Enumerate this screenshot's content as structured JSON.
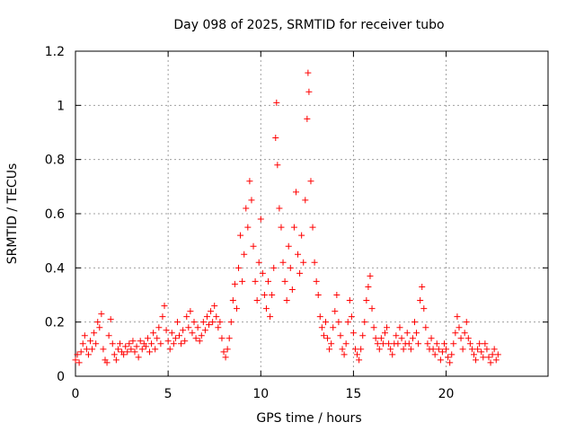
{
  "chart_data": {
    "type": "scatter",
    "title": "Day 098 of 2025, SRMTID for receiver tubo",
    "xlabel": "GPS time / hours",
    "ylabel": "SRMTID / TECUs",
    "xlim": [
      0,
      25.5
    ],
    "ylim": [
      0,
      1.2
    ],
    "x_ticks": [
      0,
      5,
      10,
      15,
      20
    ],
    "x_tick_labels": [
      "0",
      "5",
      "10",
      "15",
      "20"
    ],
    "y_ticks": [
      0,
      0.2,
      0.4,
      0.6,
      0.8,
      1,
      1.2
    ],
    "y_tick_labels": [
      "0",
      "0.2",
      "0.4",
      "0.6",
      "0.8",
      "1",
      "1.2"
    ],
    "grid": true,
    "marker": "+",
    "series": [
      {
        "name": "SRMTID",
        "color": "#ff0000",
        "points": [
          [
            0.0,
            0.06
          ],
          [
            0.1,
            0.08
          ],
          [
            0.2,
            0.05
          ],
          [
            0.3,
            0.09
          ],
          [
            0.4,
            0.12
          ],
          [
            0.5,
            0.15
          ],
          [
            0.6,
            0.1
          ],
          [
            0.7,
            0.08
          ],
          [
            0.8,
            0.13
          ],
          [
            0.9,
            0.1
          ],
          [
            1.0,
            0.16
          ],
          [
            1.1,
            0.12
          ],
          [
            1.2,
            0.2
          ],
          [
            1.3,
            0.18
          ],
          [
            1.4,
            0.23
          ],
          [
            1.5,
            0.1
          ],
          [
            1.6,
            0.06
          ],
          [
            1.7,
            0.05
          ],
          [
            1.8,
            0.15
          ],
          [
            1.9,
            0.21
          ],
          [
            2.0,
            0.12
          ],
          [
            2.1,
            0.08
          ],
          [
            2.2,
            0.06
          ],
          [
            2.3,
            0.1
          ],
          [
            2.4,
            0.12
          ],
          [
            2.5,
            0.09
          ],
          [
            2.6,
            0.08
          ],
          [
            2.7,
            0.11
          ],
          [
            2.8,
            0.09
          ],
          [
            2.9,
            0.12
          ],
          [
            3.0,
            0.1
          ],
          [
            3.1,
            0.13
          ],
          [
            3.2,
            0.09
          ],
          [
            3.3,
            0.11
          ],
          [
            3.4,
            0.07
          ],
          [
            3.5,
            0.13
          ],
          [
            3.6,
            0.1
          ],
          [
            3.7,
            0.12
          ],
          [
            3.8,
            0.11
          ],
          [
            3.9,
            0.14
          ],
          [
            4.0,
            0.09
          ],
          [
            4.1,
            0.12
          ],
          [
            4.2,
            0.16
          ],
          [
            4.3,
            0.1
          ],
          [
            4.4,
            0.14
          ],
          [
            4.5,
            0.18
          ],
          [
            4.6,
            0.12
          ],
          [
            4.7,
            0.22
          ],
          [
            4.8,
            0.26
          ],
          [
            4.9,
            0.17
          ],
          [
            5.0,
            0.13
          ],
          [
            5.1,
            0.1
          ],
          [
            5.2,
            0.16
          ],
          [
            5.3,
            0.12
          ],
          [
            5.4,
            0.14
          ],
          [
            5.5,
            0.2
          ],
          [
            5.6,
            0.15
          ],
          [
            5.7,
            0.12
          ],
          [
            5.8,
            0.17
          ],
          [
            5.9,
            0.13
          ],
          [
            6.0,
            0.22
          ],
          [
            6.1,
            0.18
          ],
          [
            6.2,
            0.24
          ],
          [
            6.3,
            0.16
          ],
          [
            6.4,
            0.2
          ],
          [
            6.5,
            0.14
          ],
          [
            6.6,
            0.18
          ],
          [
            6.7,
            0.13
          ],
          [
            6.8,
            0.15
          ],
          [
            6.9,
            0.2
          ],
          [
            7.0,
            0.17
          ],
          [
            7.1,
            0.22
          ],
          [
            7.2,
            0.19
          ],
          [
            7.3,
            0.24
          ],
          [
            7.4,
            0.2
          ],
          [
            7.5,
            0.26
          ],
          [
            7.6,
            0.22
          ],
          [
            7.7,
            0.18
          ],
          [
            7.8,
            0.2
          ],
          [
            7.9,
            0.14
          ],
          [
            8.0,
            0.09
          ],
          [
            8.1,
            0.07
          ],
          [
            8.2,
            0.1
          ],
          [
            8.3,
            0.14
          ],
          [
            8.4,
            0.2
          ],
          [
            8.5,
            0.28
          ],
          [
            8.6,
            0.34
          ],
          [
            8.7,
            0.25
          ],
          [
            8.8,
            0.4
          ],
          [
            8.9,
            0.52
          ],
          [
            9.0,
            0.35
          ],
          [
            9.1,
            0.45
          ],
          [
            9.2,
            0.62
          ],
          [
            9.3,
            0.55
          ],
          [
            9.4,
            0.72
          ],
          [
            9.5,
            0.65
          ],
          [
            9.6,
            0.48
          ],
          [
            9.7,
            0.35
          ],
          [
            9.8,
            0.28
          ],
          [
            9.9,
            0.42
          ],
          [
            10.0,
            0.58
          ],
          [
            10.1,
            0.38
          ],
          [
            10.2,
            0.3
          ],
          [
            10.3,
            0.25
          ],
          [
            10.4,
            0.35
          ],
          [
            10.5,
            0.22
          ],
          [
            10.6,
            0.3
          ],
          [
            10.7,
            0.4
          ],
          [
            10.8,
            0.88
          ],
          [
            10.85,
            1.01
          ],
          [
            10.9,
            0.78
          ],
          [
            11.0,
            0.62
          ],
          [
            11.1,
            0.55
          ],
          [
            11.2,
            0.42
          ],
          [
            11.3,
            0.35
          ],
          [
            11.4,
            0.28
          ],
          [
            11.5,
            0.48
          ],
          [
            11.6,
            0.4
          ],
          [
            11.7,
            0.32
          ],
          [
            11.8,
            0.55
          ],
          [
            11.9,
            0.68
          ],
          [
            12.0,
            0.45
          ],
          [
            12.1,
            0.38
          ],
          [
            12.2,
            0.52
          ],
          [
            12.3,
            0.42
          ],
          [
            12.4,
            0.65
          ],
          [
            12.5,
            0.95
          ],
          [
            12.55,
            1.12
          ],
          [
            12.6,
            1.05
          ],
          [
            12.7,
            0.72
          ],
          [
            12.8,
            0.55
          ],
          [
            12.9,
            0.42
          ],
          [
            13.0,
            0.35
          ],
          [
            13.1,
            0.3
          ],
          [
            13.2,
            0.22
          ],
          [
            13.3,
            0.18
          ],
          [
            13.4,
            0.15
          ],
          [
            13.5,
            0.2
          ],
          [
            13.6,
            0.14
          ],
          [
            13.7,
            0.1
          ],
          [
            13.8,
            0.12
          ],
          [
            13.9,
            0.18
          ],
          [
            14.0,
            0.24
          ],
          [
            14.1,
            0.3
          ],
          [
            14.2,
            0.2
          ],
          [
            14.3,
            0.15
          ],
          [
            14.4,
            0.1
          ],
          [
            14.5,
            0.08
          ],
          [
            14.6,
            0.12
          ],
          [
            14.7,
            0.2
          ],
          [
            14.8,
            0.28
          ],
          [
            14.9,
            0.22
          ],
          [
            15.0,
            0.16
          ],
          [
            15.1,
            0.1
          ],
          [
            15.2,
            0.08
          ],
          [
            15.3,
            0.06
          ],
          [
            15.4,
            0.1
          ],
          [
            15.5,
            0.15
          ],
          [
            15.6,
            0.2
          ],
          [
            15.7,
            0.28
          ],
          [
            15.8,
            0.33
          ],
          [
            15.9,
            0.37
          ],
          [
            16.0,
            0.25
          ],
          [
            16.1,
            0.18
          ],
          [
            16.2,
            0.14
          ],
          [
            16.3,
            0.12
          ],
          [
            16.4,
            0.1
          ],
          [
            16.5,
            0.14
          ],
          [
            16.6,
            0.12
          ],
          [
            16.7,
            0.16
          ],
          [
            16.8,
            0.18
          ],
          [
            16.9,
            0.12
          ],
          [
            17.0,
            0.1
          ],
          [
            17.1,
            0.08
          ],
          [
            17.2,
            0.12
          ],
          [
            17.3,
            0.15
          ],
          [
            17.4,
            0.12
          ],
          [
            17.5,
            0.18
          ],
          [
            17.6,
            0.14
          ],
          [
            17.7,
            0.1
          ],
          [
            17.8,
            0.12
          ],
          [
            17.9,
            0.16
          ],
          [
            18.0,
            0.12
          ],
          [
            18.1,
            0.1
          ],
          [
            18.2,
            0.14
          ],
          [
            18.3,
            0.2
          ],
          [
            18.4,
            0.16
          ],
          [
            18.5,
            0.12
          ],
          [
            18.6,
            0.28
          ],
          [
            18.7,
            0.33
          ],
          [
            18.8,
            0.25
          ],
          [
            18.9,
            0.18
          ],
          [
            19.0,
            0.12
          ],
          [
            19.1,
            0.1
          ],
          [
            19.2,
            0.14
          ],
          [
            19.3,
            0.1
          ],
          [
            19.4,
            0.08
          ],
          [
            19.5,
            0.12
          ],
          [
            19.6,
            0.1
          ],
          [
            19.7,
            0.06
          ],
          [
            19.8,
            0.09
          ],
          [
            19.9,
            0.12
          ],
          [
            20.0,
            0.1
          ],
          [
            20.1,
            0.07
          ],
          [
            20.2,
            0.05
          ],
          [
            20.3,
            0.08
          ],
          [
            20.4,
            0.12
          ],
          [
            20.5,
            0.16
          ],
          [
            20.6,
            0.22
          ],
          [
            20.7,
            0.18
          ],
          [
            20.8,
            0.14
          ],
          [
            20.9,
            0.1
          ],
          [
            21.0,
            0.16
          ],
          [
            21.1,
            0.2
          ],
          [
            21.2,
            0.14
          ],
          [
            21.3,
            0.12
          ],
          [
            21.4,
            0.1
          ],
          [
            21.5,
            0.08
          ],
          [
            21.6,
            0.06
          ],
          [
            21.7,
            0.1
          ],
          [
            21.8,
            0.12
          ],
          [
            21.9,
            0.09
          ],
          [
            22.0,
            0.07
          ],
          [
            22.1,
            0.12
          ],
          [
            22.2,
            0.1
          ],
          [
            22.3,
            0.07
          ],
          [
            22.4,
            0.05
          ],
          [
            22.5,
            0.08
          ],
          [
            22.6,
            0.1
          ],
          [
            22.7,
            0.06
          ],
          [
            22.8,
            0.08
          ]
        ]
      }
    ]
  }
}
